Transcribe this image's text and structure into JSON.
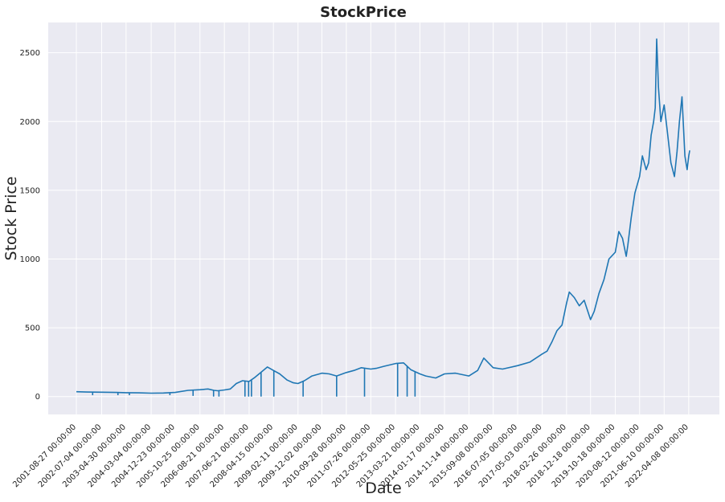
{
  "chart_data": {
    "type": "line",
    "title": "StockPrice",
    "xlabel": "Date",
    "ylabel": "Stock Price",
    "grid": true,
    "legend": "none",
    "colors": {
      "background": "#eaeaf2",
      "grid": "#ffffff",
      "line": "#1f77b4"
    },
    "xlim": [
      "2000-09-15",
      "2023-04-20"
    ],
    "ylim": [
      -130,
      2720
    ],
    "x_ticks": [
      "2001-08-27 00:00:00",
      "2002-07-04 00:00:00",
      "2003-04-30 00:00:00",
      "2004-03-04 00:00:00",
      "2004-12-23 00:00:00",
      "2005-10-25 00:00:00",
      "2006-08-21 00:00:00",
      "2007-06-21 00:00:00",
      "2008-04-15 00:00:00",
      "2009-02-11 00:00:00",
      "2009-12-02 00:00:00",
      "2010-09-28 00:00:00",
      "2011-07-26 00:00:00",
      "2012-05-25 00:00:00",
      "2013-03-21 00:00:00",
      "2014-01-17 00:00:00",
      "2014-11-14 00:00:00",
      "2015-09-08 00:00:00",
      "2016-07-05 00:00:00",
      "2017-05-03 00:00:00",
      "2018-02-26 00:00:00",
      "2018-12-18 00:00:00",
      "2019-10-18 00:00:00",
      "2020-08-12 00:00:00",
      "2021-06-10 00:00:00",
      "2022-04-08 00:00:00"
    ],
    "y_ticks": [
      0,
      500,
      1000,
      1500,
      2000,
      2500
    ],
    "series": [
      {
        "x": [
          "2001-08-27",
          "2002-01-01",
          "2002-07-04",
          "2003-01-01",
          "2003-04-30",
          "2003-10-01",
          "2004-03-04",
          "2004-08-01",
          "2004-12-23",
          "2005-06-01",
          "2005-10-25",
          "2006-02-01",
          "2006-04-15",
          "2006-06-01",
          "2006-08-21",
          "2006-11-01",
          "2007-01-15",
          "2007-04-01",
          "2007-06-21",
          "2007-09-01",
          "2007-11-01",
          "2008-02-01",
          "2008-04-15",
          "2008-07-01",
          "2008-10-01",
          "2008-12-15",
          "2009-02-11",
          "2009-05-01",
          "2009-08-01",
          "2009-12-02",
          "2010-03-01",
          "2010-06-01",
          "2010-09-28",
          "2011-01-01",
          "2011-04-01",
          "2011-07-26",
          "2011-10-01",
          "2012-01-01",
          "2012-05-25",
          "2012-09-01",
          "2012-12-01",
          "2013-03-21",
          "2013-06-01",
          "2013-10-01",
          "2014-01-17",
          "2014-06-01",
          "2014-11-14",
          "2015-03-01",
          "2015-05-15",
          "2015-09-08",
          "2016-01-01",
          "2016-07-05",
          "2016-12-01",
          "2017-05-03",
          "2017-07-01",
          "2017-09-01",
          "2017-11-01",
          "2018-01-01",
          "2018-02-26",
          "2018-04-01",
          "2018-06-01",
          "2018-08-01",
          "2018-10-01",
          "2018-12-18",
          "2019-02-01",
          "2019-04-01",
          "2019-06-01",
          "2019-08-01",
          "2019-10-18",
          "2019-12-01",
          "2020-01-15",
          "2020-03-01",
          "2020-03-20",
          "2020-05-01",
          "2020-06-15",
          "2020-08-12",
          "2020-09-15",
          "2020-11-01",
          "2020-12-01",
          "2021-01-01",
          "2021-02-01",
          "2021-02-20",
          "2021-03-10",
          "2021-04-01",
          "2021-05-01",
          "2021-06-10",
          "2021-07-15",
          "2021-09-01",
          "2021-10-15",
          "2021-11-15",
          "2021-12-15",
          "2022-01-15",
          "2022-02-20",
          "2022-03-20",
          "2022-04-08",
          "2022-04-20"
        ],
        "y": [
          35,
          33,
          32,
          30,
          28,
          27,
          25,
          26,
          30,
          45,
          50,
          55,
          45,
          42,
          48,
          55,
          95,
          115,
          110,
          140,
          170,
          215,
          190,
          165,
          120,
          100,
          95,
          115,
          150,
          170,
          165,
          150,
          175,
          190,
          210,
          200,
          205,
          220,
          240,
          245,
          195,
          165,
          150,
          135,
          165,
          170,
          150,
          190,
          280,
          210,
          200,
          225,
          250,
          310,
          330,
          400,
          480,
          520,
          680,
          760,
          720,
          660,
          700,
          560,
          620,
          750,
          850,
          1000,
          1050,
          1200,
          1150,
          1020,
          1100,
          1300,
          1480,
          1600,
          1750,
          1650,
          1700,
          1900,
          2000,
          2100,
          2600,
          2250,
          2000,
          2120,
          1950,
          1700,
          1600,
          1780,
          2000,
          2180,
          1750,
          1650,
          1750,
          1790
        ],
        "dips": [
          {
            "date": "2002-03-15",
            "value": 10
          },
          {
            "date": "2003-01-20",
            "value": 10
          },
          {
            "date": "2003-06-10",
            "value": 10
          },
          {
            "date": "2004-10-20",
            "value": 10
          },
          {
            "date": "2005-08-01",
            "value": 5
          },
          {
            "date": "2006-04-10",
            "value": 0
          },
          {
            "date": "2006-06-15",
            "value": 0
          },
          {
            "date": "2007-05-01",
            "value": 0
          },
          {
            "date": "2007-06-15",
            "value": 0
          },
          {
            "date": "2007-07-20",
            "value": 0
          },
          {
            "date": "2007-11-15",
            "value": 0
          },
          {
            "date": "2008-04-20",
            "value": 0
          },
          {
            "date": "2009-04-15",
            "value": 0
          },
          {
            "date": "2010-06-01",
            "value": 0
          },
          {
            "date": "2011-05-10",
            "value": 0
          },
          {
            "date": "2012-06-20",
            "value": 0
          },
          {
            "date": "2012-10-15",
            "value": 0
          },
          {
            "date": "2013-01-20",
            "value": 0
          }
        ]
      }
    ]
  }
}
